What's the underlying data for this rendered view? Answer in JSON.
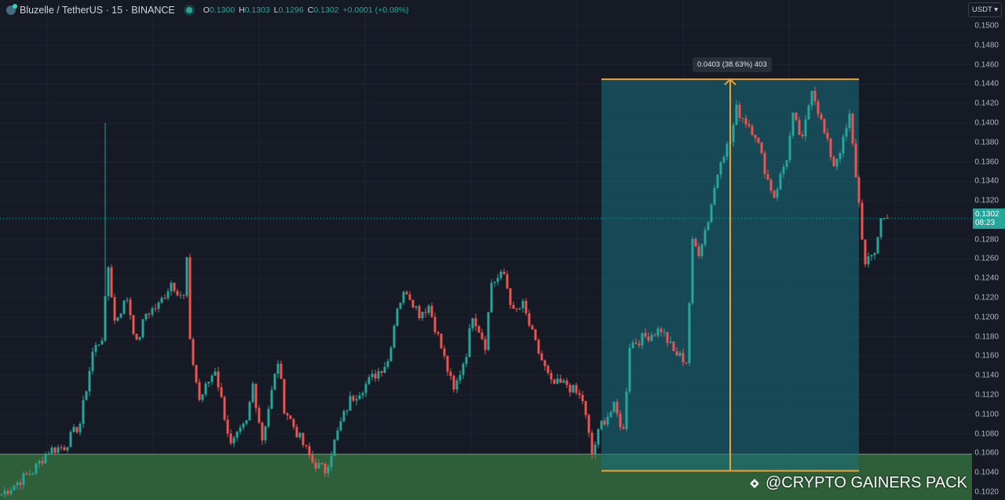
{
  "header": {
    "symbol_title": "Bluzelle / TetherUS · 15 · BINANCE",
    "open_label": "O",
    "open": "0.1300",
    "high_label": "H",
    "high": "0.1303",
    "low_label": "L",
    "low": "0.1296",
    "close_label": "C",
    "close": "0.1302",
    "change": "+0.0001 (+0.08%)"
  },
  "price_axis": {
    "currency_button": "USDT ▾",
    "current_price": "0.1302",
    "countdown": "08:23",
    "ticks": [
      "0.1500",
      "0.1480",
      "0.1460",
      "0.1440",
      "0.1420",
      "0.1400",
      "0.1380",
      "0.1360",
      "0.1340",
      "0.1320",
      "0.1280",
      "0.1260",
      "0.1240",
      "0.1220",
      "0.1200",
      "0.1180",
      "0.1160",
      "0.1140",
      "0.1120",
      "0.1100",
      "0.1080",
      "0.1060",
      "0.1040",
      "0.1020"
    ]
  },
  "measure_tool": {
    "label": "0.0403 (38.63%) 403",
    "top_price": 0.1445,
    "bottom_price": 0.1042,
    "start_bar": 191,
    "end_bar": 273,
    "arrow_bar": 232
  },
  "support_zone": {
    "top_price": 0.1059
  },
  "watermark": "@CRYPTO GAINERS PACK",
  "colors": {
    "up": "#26a69a",
    "down": "#ef5350",
    "zone": "#2e5f38",
    "measure": "#f0a030",
    "measure_fill": "#1a6f7f"
  },
  "chart_data": {
    "type": "candlestick",
    "title": "Bluzelle / TetherUS · 15 · BINANCE",
    "ylim": [
      0.101,
      0.151
    ],
    "current_price": 0.1302,
    "keypoints_bar_close": [
      [
        0,
        0.1018
      ],
      [
        10,
        0.1042
      ],
      [
        15,
        0.1063
      ],
      [
        20,
        0.1067
      ],
      [
        25,
        0.1091
      ],
      [
        29,
        0.1164
      ],
      [
        32,
        0.118
      ],
      [
        34,
        0.1252
      ],
      [
        36,
        0.1196
      ],
      [
        40,
        0.122
      ],
      [
        43,
        0.1172
      ],
      [
        46,
        0.1204
      ],
      [
        50,
        0.1212
      ],
      [
        54,
        0.1236
      ],
      [
        58,
        0.122
      ],
      [
        59,
        0.126
      ],
      [
        60,
        0.1172
      ],
      [
        63,
        0.1115
      ],
      [
        68,
        0.1147
      ],
      [
        73,
        0.1067
      ],
      [
        78,
        0.1091
      ],
      [
        80,
        0.1131
      ],
      [
        83,
        0.1075
      ],
      [
        88,
        0.1155
      ],
      [
        90,
        0.1107
      ],
      [
        95,
        0.1075
      ],
      [
        99,
        0.1051
      ],
      [
        103,
        0.1042
      ],
      [
        108,
        0.1091
      ],
      [
        111,
        0.1115
      ],
      [
        116,
        0.1131
      ],
      [
        123,
        0.1155
      ],
      [
        126,
        0.1212
      ],
      [
        129,
        0.1228
      ],
      [
        133,
        0.1204
      ],
      [
        136,
        0.1212
      ],
      [
        139,
        0.118
      ],
      [
        144,
        0.1123
      ],
      [
        148,
        0.1164
      ],
      [
        150,
        0.1204
      ],
      [
        154,
        0.1172
      ],
      [
        156,
        0.1236
      ],
      [
        160,
        0.1244
      ],
      [
        163,
        0.1204
      ],
      [
        166,
        0.1212
      ],
      [
        170,
        0.1172
      ],
      [
        175,
        0.1131
      ],
      [
        180,
        0.1131
      ],
      [
        185,
        0.1115
      ],
      [
        188,
        0.1059
      ],
      [
        191,
        0.1091
      ],
      [
        195,
        0.1107
      ],
      [
        198,
        0.1083
      ],
      [
        200,
        0.1172
      ],
      [
        205,
        0.118
      ],
      [
        210,
        0.1188
      ],
      [
        214,
        0.1164
      ],
      [
        218,
        0.1155
      ],
      [
        220,
        0.1276
      ],
      [
        222,
        0.1268
      ],
      [
        225,
        0.1301
      ],
      [
        229,
        0.1365
      ],
      [
        232,
        0.1381
      ],
      [
        234,
        0.1414
      ],
      [
        238,
        0.1398
      ],
      [
        240,
        0.1389
      ],
      [
        244,
        0.1341
      ],
      [
        246,
        0.1325
      ],
      [
        250,
        0.1365
      ],
      [
        252,
        0.1406
      ],
      [
        255,
        0.1381
      ],
      [
        258,
        0.1438
      ],
      [
        262,
        0.1389
      ],
      [
        265,
        0.1357
      ],
      [
        268,
        0.1381
      ],
      [
        270,
        0.1406
      ],
      [
        273,
        0.1317
      ],
      [
        275,
        0.1252
      ],
      [
        278,
        0.1268
      ],
      [
        280,
        0.1301
      ],
      [
        282,
        0.1302
      ]
    ],
    "spikes": [
      {
        "bar": 33,
        "high": 0.14
      }
    ]
  }
}
